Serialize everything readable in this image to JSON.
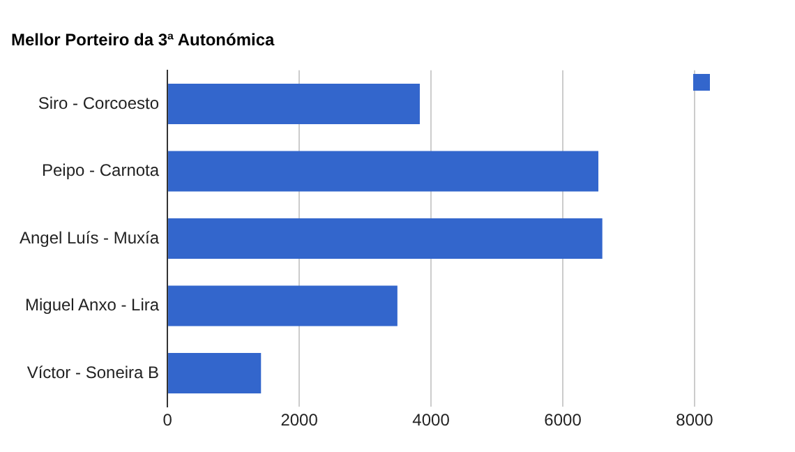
{
  "chart_data": {
    "type": "bar",
    "orientation": "horizontal",
    "title": "Mellor Porteiro da 3ª Autonómica",
    "categories": [
      "Siro - Corcoesto",
      "Peipo - Carnota",
      "Angel Luís - Muxía",
      "Miguel Anxo - Lira",
      "Víctor - Soneira B"
    ],
    "series": [
      {
        "color": "#3366cc",
        "values": [
          3830,
          6540,
          6600,
          3490,
          1420
        ]
      }
    ],
    "xlim": [
      0,
      8000
    ],
    "xticks": [
      0,
      2000,
      4000,
      6000,
      8000
    ],
    "grid": "x"
  }
}
